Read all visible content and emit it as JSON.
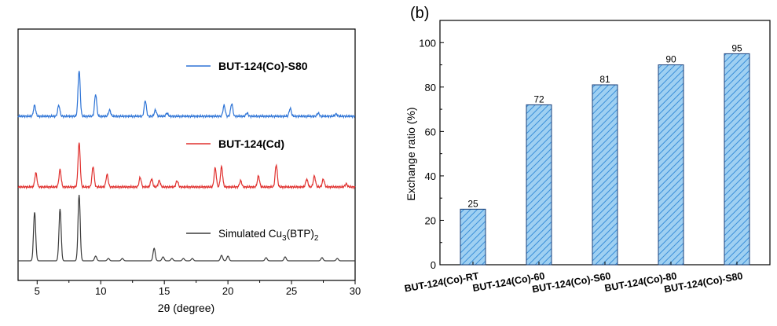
{
  "chart_data": [
    {
      "type": "line",
      "panel_label": "",
      "xlabel": "2θ (degree)",
      "ylabel": "",
      "xlim": [
        3.5,
        30
      ],
      "x_ticks": [
        "5",
        "10",
        "15",
        "20",
        "25",
        "30"
      ],
      "y_ticks": [],
      "grid": false,
      "legend_placement": "inline",
      "series": [
        {
          "name": "BUT-124(Co)-S80",
          "color": "#2e74d6",
          "baseline": 0,
          "peaks": [
            [
              4.8,
              14
            ],
            [
              6.7,
              14
            ],
            [
              8.3,
              58
            ],
            [
              9.6,
              28
            ],
            [
              10.7,
              8
            ],
            [
              13.5,
              20
            ],
            [
              14.3,
              8
            ],
            [
              15.2,
              4
            ],
            [
              19.7,
              14
            ],
            [
              20.3,
              16
            ],
            [
              21.5,
              4
            ],
            [
              24.9,
              10
            ],
            [
              27.1,
              4
            ],
            [
              28.5,
              3
            ]
          ]
        },
        {
          "name": "BUT-124(Cd)",
          "color": "#e0302e",
          "baseline": 0,
          "peaks": [
            [
              4.9,
              18
            ],
            [
              6.8,
              22
            ],
            [
              8.3,
              56
            ],
            [
              9.4,
              26
            ],
            [
              10.5,
              16
            ],
            [
              13.1,
              12
            ],
            [
              14.0,
              10
            ],
            [
              14.6,
              8
            ],
            [
              16.0,
              8
            ],
            [
              19.0,
              24
            ],
            [
              19.5,
              26
            ],
            [
              21.0,
              8
            ],
            [
              22.4,
              14
            ],
            [
              23.8,
              28
            ],
            [
              26.2,
              10
            ],
            [
              26.8,
              14
            ],
            [
              27.5,
              10
            ],
            [
              29.3,
              4
            ]
          ]
        },
        {
          "name": "Simulated Cu3(BTP)2",
          "color": "#3c3c3c",
          "baseline": 0,
          "peaks": [
            [
              4.8,
              62
            ],
            [
              6.8,
              66
            ],
            [
              8.3,
              84
            ],
            [
              9.6,
              6
            ],
            [
              10.6,
              3
            ],
            [
              11.7,
              3
            ],
            [
              14.2,
              16
            ],
            [
              14.9,
              5
            ],
            [
              15.6,
              3
            ],
            [
              16.5,
              3
            ],
            [
              17.2,
              3
            ],
            [
              19.5,
              7
            ],
            [
              20.0,
              6
            ],
            [
              23.0,
              4
            ],
            [
              24.5,
              5
            ],
            [
              27.4,
              4
            ],
            [
              28.6,
              3
            ]
          ]
        }
      ],
      "legend": [
        {
          "label": "BUT-124(Co)-S80",
          "color": "#2e74d6"
        },
        {
          "label": "BUT-124(Cd)",
          "color": "#e0302e"
        },
        {
          "label_main": "Simulated Cu",
          "sub1": "3",
          "label_mid": "(BTP)",
          "sub2": "2",
          "color": "#3c3c3c"
        }
      ]
    },
    {
      "type": "bar",
      "panel_label": "(b)",
      "categories": [
        "BUT-124(Co)-RT",
        "BUT-124(Co)-60",
        "BUT-124(Co)-S60",
        "BUT-124(Co)-80",
        "BUT-124(Co)-S80"
      ],
      "values": [
        25,
        72,
        81,
        90,
        95
      ],
      "data_labels": [
        "25",
        "72",
        "81",
        "90",
        "95"
      ],
      "xlabel": "",
      "ylabel": "Exchange ratio (%)",
      "ylim": [
        0,
        110
      ],
      "y_ticks": [
        0,
        20,
        40,
        60,
        80,
        100
      ],
      "grid": false,
      "bar_fill": "#9fd0f2",
      "bar_hatch": "#3a8ed8",
      "bar_edge": "#1a3f7a"
    }
  ]
}
